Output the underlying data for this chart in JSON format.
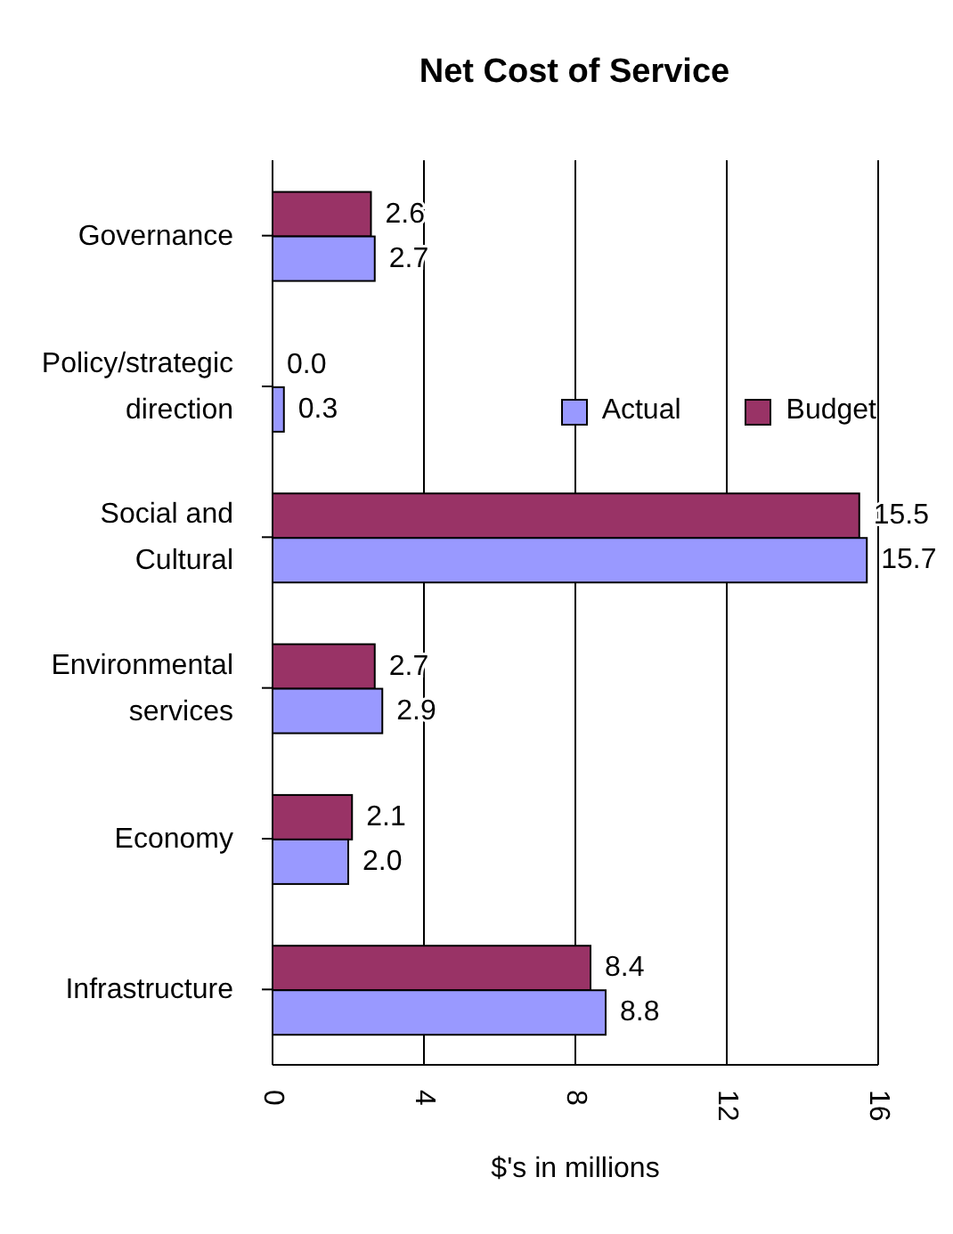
{
  "chart_data": {
    "type": "bar",
    "orientation": "horizontal",
    "title": "Net Cost of Service",
    "xlabel": "$'s in millions",
    "categories": [
      "Governance",
      "Policy/strategic direction",
      "Social and Cultural",
      "Environmental services",
      "Economy",
      "Infrastructure"
    ],
    "series": [
      {
        "name": "Actual",
        "color": "#9999ff",
        "values": [
          2.7,
          0.3,
          15.7,
          2.9,
          2.0,
          8.8
        ],
        "value_labels": [
          "2.7",
          "0.3",
          "15.7",
          "2.9",
          "2.0",
          "8.8"
        ]
      },
      {
        "name": "Budget",
        "color": "#993366",
        "values": [
          2.6,
          0.0,
          15.5,
          2.7,
          2.1,
          8.4
        ],
        "value_labels": [
          "2.6",
          "0.0",
          "15.5",
          "2.7",
          "2.1",
          "8.4"
        ]
      }
    ],
    "xlim": [
      0,
      16
    ],
    "xticks": [
      0,
      4,
      8,
      12,
      16
    ],
    "grid": "x",
    "legend": "top right"
  }
}
